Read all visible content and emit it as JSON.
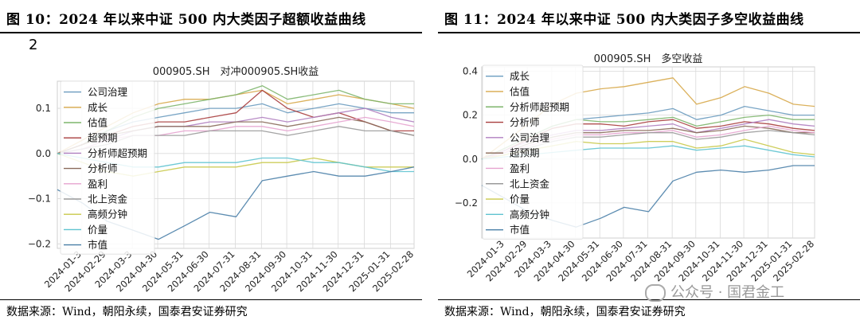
{
  "figures": [
    {
      "heading": "图 10：2024 年以来中证 500 内大类因子超额收益曲线",
      "stray_mark": "2",
      "source": "数据来源：Wind，朝阳永续，国泰君安证券研究"
    },
    {
      "heading": "图 11：2024 年以来中证 500 内大类因子多空收益曲线",
      "source": "数据来源：Wind，朝阳永续，国泰君安证券研究"
    }
  ],
  "watermark": "公众号 · 国君金工",
  "chart_data": [
    {
      "type": "line",
      "title": "000905.SH　对冲000905.SH收益",
      "xlabel": "",
      "ylabel": "",
      "ylim": [
        -0.21,
        0.16
      ],
      "yticks": [
        -0.2,
        -0.1,
        0.0,
        0.1
      ],
      "ytick_labels": [
        "−0.2",
        "−0.1",
        "0.0",
        "0.1"
      ],
      "xlim": [
        "2024-01-02",
        "2025-02-28"
      ],
      "xticks": [
        "2024-01-31",
        "2024-02-29",
        "2024-03-31",
        "2024-04-30",
        "2024-05-31",
        "2024-06-30",
        "2024-07-31",
        "2024-08-31",
        "2024-09-30",
        "2024-10-31",
        "2024-11-30",
        "2024-12-31",
        "2025-01-31",
        "2025-02-28"
      ],
      "xtick_labels": [
        "2024-01-3",
        "2024-02-29",
        "2024-03-3",
        "2024-04-30",
        "2024-05-31",
        "2024-06-30",
        "2024-07-31",
        "2024-08-31",
        "2024-09-30",
        "2024-10-31",
        "2024-11-30",
        "2024-12-31",
        "2025-01-31",
        "2025-02-28"
      ],
      "grid": true,
      "legend": "upper-left",
      "x": [
        "2024-01-02",
        "2024-02-01",
        "2024-03-01",
        "2024-04-01",
        "2024-05-01",
        "2024-06-01",
        "2024-07-01",
        "2024-08-01",
        "2024-09-01",
        "2024-10-01",
        "2024-11-01",
        "2024-12-01",
        "2025-01-01",
        "2025-02-01",
        "2025-02-28"
      ],
      "series": [
        {
          "name": "公司治理",
          "color": "#6a9bbf",
          "values": [
            0.0,
            0.02,
            0.05,
            0.07,
            0.08,
            0.09,
            0.1,
            0.1,
            0.11,
            0.09,
            0.1,
            0.11,
            0.1,
            0.09,
            0.09
          ]
        },
        {
          "name": "成长",
          "color": "#d7a84a",
          "values": [
            0.0,
            0.03,
            0.06,
            0.09,
            0.11,
            0.12,
            0.12,
            0.13,
            0.14,
            0.11,
            0.12,
            0.13,
            0.12,
            0.11,
            0.1
          ]
        },
        {
          "name": "估值",
          "color": "#7db56b",
          "values": [
            0.0,
            0.02,
            0.05,
            0.08,
            0.1,
            0.11,
            0.12,
            0.13,
            0.15,
            0.12,
            0.13,
            0.14,
            0.12,
            0.11,
            0.11
          ]
        },
        {
          "name": "超预期",
          "color": "#a83d3d",
          "values": [
            0.0,
            0.02,
            0.04,
            0.06,
            0.07,
            0.07,
            0.08,
            0.09,
            0.14,
            0.1,
            0.08,
            0.09,
            0.07,
            0.05,
            0.05
          ]
        },
        {
          "name": "分析师超预期",
          "color": "#b07fc0",
          "values": [
            0.0,
            0.01,
            0.03,
            0.05,
            0.06,
            0.06,
            0.07,
            0.07,
            0.08,
            0.07,
            0.08,
            0.09,
            0.1,
            0.08,
            0.07
          ]
        },
        {
          "name": "分析师",
          "color": "#8a6a5a",
          "values": [
            0.0,
            0.02,
            0.04,
            0.05,
            0.06,
            0.06,
            0.06,
            0.07,
            0.07,
            0.06,
            0.07,
            0.08,
            0.07,
            0.05,
            0.04
          ]
        },
        {
          "name": "盈利",
          "color": "#e6a3cf",
          "values": [
            0.0,
            0.01,
            0.03,
            0.04,
            0.04,
            0.05,
            0.05,
            0.06,
            0.06,
            0.05,
            0.06,
            0.07,
            0.08,
            0.07,
            0.06
          ]
        },
        {
          "name": "北上资金",
          "color": "#9a9a9a",
          "values": [
            0.0,
            0.01,
            0.02,
            0.04,
            0.04,
            0.04,
            0.05,
            0.05,
            0.05,
            0.04,
            0.05,
            0.06,
            0.05,
            0.05,
            0.04
          ]
        },
        {
          "name": "高频分钟",
          "color": "#c9c94a",
          "values": [
            0.0,
            -0.02,
            -0.04,
            -0.05,
            -0.04,
            -0.03,
            -0.03,
            -0.03,
            -0.02,
            -0.02,
            -0.01,
            -0.02,
            -0.03,
            -0.03,
            -0.03
          ]
        },
        {
          "name": "价量",
          "color": "#5fc3d0",
          "values": [
            0.0,
            -0.01,
            -0.02,
            -0.03,
            -0.03,
            -0.02,
            -0.02,
            -0.02,
            -0.01,
            -0.01,
            -0.02,
            -0.02,
            -0.03,
            -0.04,
            -0.04
          ]
        },
        {
          "name": "市值",
          "color": "#4a7fa8",
          "values": [
            -0.08,
            -0.11,
            -0.15,
            -0.17,
            -0.19,
            -0.16,
            -0.13,
            -0.14,
            -0.06,
            -0.05,
            -0.04,
            -0.05,
            -0.05,
            -0.04,
            -0.03
          ]
        }
      ]
    },
    {
      "type": "line",
      "title": "000905.SH　多空收益",
      "xlabel": "",
      "ylabel": "",
      "ylim": [
        -0.36,
        0.42
      ],
      "yticks": [
        -0.2,
        0.0,
        0.2,
        0.4
      ],
      "ytick_labels": [
        "−0.2",
        "0.0",
        "0.2",
        "0.4"
      ],
      "xlim": [
        "2024-01-02",
        "2025-02-28"
      ],
      "xticks": [
        "2024-01-31",
        "2024-02-29",
        "2024-03-31",
        "2024-04-30",
        "2024-05-31",
        "2024-06-30",
        "2024-07-31",
        "2024-08-31",
        "2024-09-30",
        "2024-10-31",
        "2024-11-30",
        "2024-12-31",
        "2025-01-31",
        "2025-02-28"
      ],
      "xtick_labels": [
        "2024-01-3",
        "2024-02-29",
        "2024-03-3",
        "2024-04-30",
        "2024-05-31",
        "2024-06-30",
        "2024-07-31",
        "2024-08-31",
        "2024-09-30",
        "2024-10-31",
        "2024-11-30",
        "2024-12-31",
        "2025-01-31",
        "2025-02-28"
      ],
      "grid": true,
      "legend": "upper-left",
      "x": [
        "2024-01-02",
        "2024-02-01",
        "2024-03-01",
        "2024-04-01",
        "2024-05-01",
        "2024-06-01",
        "2024-07-01",
        "2024-08-01",
        "2024-09-01",
        "2024-10-01",
        "2024-11-01",
        "2024-12-01",
        "2025-01-01",
        "2025-02-01",
        "2025-02-28"
      ],
      "series": [
        {
          "name": "成长",
          "color": "#6a9bbf",
          "values": [
            0.0,
            0.05,
            0.1,
            0.15,
            0.18,
            0.19,
            0.2,
            0.21,
            0.23,
            0.18,
            0.2,
            0.24,
            0.22,
            0.2,
            0.2
          ]
        },
        {
          "name": "估值",
          "color": "#d7a84a",
          "values": [
            0.0,
            0.08,
            0.16,
            0.25,
            0.3,
            0.32,
            0.33,
            0.35,
            0.37,
            0.25,
            0.28,
            0.33,
            0.3,
            0.25,
            0.24
          ]
        },
        {
          "name": "分析师超预期",
          "color": "#7db56b",
          "values": [
            0.0,
            0.05,
            0.1,
            0.15,
            0.18,
            0.17,
            0.17,
            0.18,
            0.19,
            0.15,
            0.17,
            0.19,
            0.2,
            0.18,
            0.18
          ]
        },
        {
          "name": "分析师",
          "color": "#a83d3d",
          "values": [
            0.0,
            0.04,
            0.09,
            0.14,
            0.16,
            0.16,
            0.15,
            0.17,
            0.18,
            0.14,
            0.15,
            0.17,
            0.16,
            0.14,
            0.13
          ]
        },
        {
          "name": "公司治理",
          "color": "#b07fc0",
          "values": [
            0.0,
            0.04,
            0.08,
            0.11,
            0.13,
            0.13,
            0.14,
            0.15,
            0.16,
            0.12,
            0.14,
            0.16,
            0.18,
            0.16,
            0.15
          ]
        },
        {
          "name": "超预期",
          "color": "#8a6a5a",
          "values": [
            0.0,
            0.03,
            0.07,
            0.1,
            0.12,
            0.12,
            0.13,
            0.13,
            0.14,
            0.12,
            0.13,
            0.15,
            0.14,
            0.12,
            0.12
          ]
        },
        {
          "name": "盈利",
          "color": "#e6a3cf",
          "values": [
            0.0,
            0.03,
            0.06,
            0.09,
            0.11,
            0.11,
            0.12,
            0.12,
            0.13,
            0.1,
            0.11,
            0.13,
            0.15,
            0.13,
            0.12
          ]
        },
        {
          "name": "北上资金",
          "color": "#9a9a9a",
          "values": [
            0.0,
            0.02,
            0.05,
            0.08,
            0.1,
            0.1,
            0.11,
            0.12,
            0.12,
            0.09,
            0.1,
            0.12,
            0.13,
            0.12,
            0.11
          ]
        },
        {
          "name": "价量",
          "color": "#c9c94a",
          "values": [
            0.0,
            0.02,
            0.04,
            0.06,
            0.08,
            0.07,
            0.07,
            0.08,
            0.08,
            0.05,
            0.06,
            0.09,
            0.06,
            0.03,
            0.02
          ]
        },
        {
          "name": "高频分钟",
          "color": "#5fc3d0",
          "values": [
            0.0,
            0.01,
            0.02,
            0.03,
            0.04,
            0.05,
            0.05,
            0.05,
            0.06,
            0.04,
            0.05,
            0.06,
            0.04,
            0.02,
            0.01
          ]
        },
        {
          "name": "市值",
          "color": "#4a7fa8",
          "values": [
            -0.12,
            -0.18,
            -0.24,
            -0.28,
            -0.31,
            -0.27,
            -0.22,
            -0.24,
            -0.1,
            -0.06,
            -0.05,
            -0.06,
            -0.05,
            -0.03,
            -0.03
          ]
        }
      ]
    }
  ]
}
